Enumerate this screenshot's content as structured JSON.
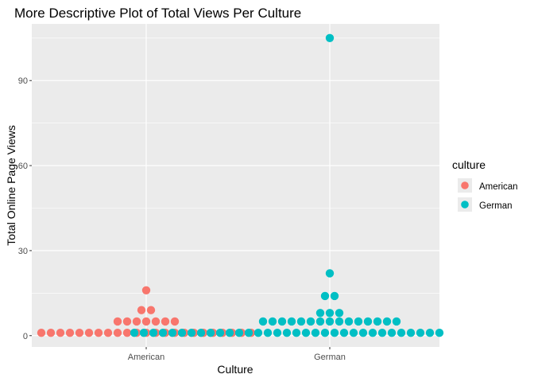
{
  "chart_data": {
    "type": "scatter",
    "title": "More Descriptive Plot of Total Views Per Culture",
    "xlabel": "Culture",
    "ylabel": "Total Online Page Views",
    "categories": [
      "American",
      "German"
    ],
    "ylim": [
      -4,
      110
    ],
    "yticks": [
      0,
      30,
      60,
      90
    ],
    "grid": true,
    "legend": {
      "title": "culture",
      "position": "right",
      "entries": [
        "American",
        "German"
      ]
    },
    "colors": {
      "American": "#F8766D",
      "German": "#00BFC4"
    },
    "series": [
      {
        "name": "American",
        "category": "American",
        "points": [
          {
            "y": 1,
            "count": 23
          },
          {
            "y": 5,
            "count": 7
          },
          {
            "y": 9,
            "count": 2
          },
          {
            "y": 16,
            "count": 1
          }
        ]
      },
      {
        "name": "German",
        "category": "German",
        "points": [
          {
            "y": 1,
            "count": 42
          },
          {
            "y": 5,
            "count": 15
          },
          {
            "y": 8,
            "count": 3
          },
          {
            "y": 14,
            "count": 2
          },
          {
            "y": 22,
            "count": 1
          },
          {
            "y": 105,
            "count": 1
          }
        ]
      }
    ]
  }
}
